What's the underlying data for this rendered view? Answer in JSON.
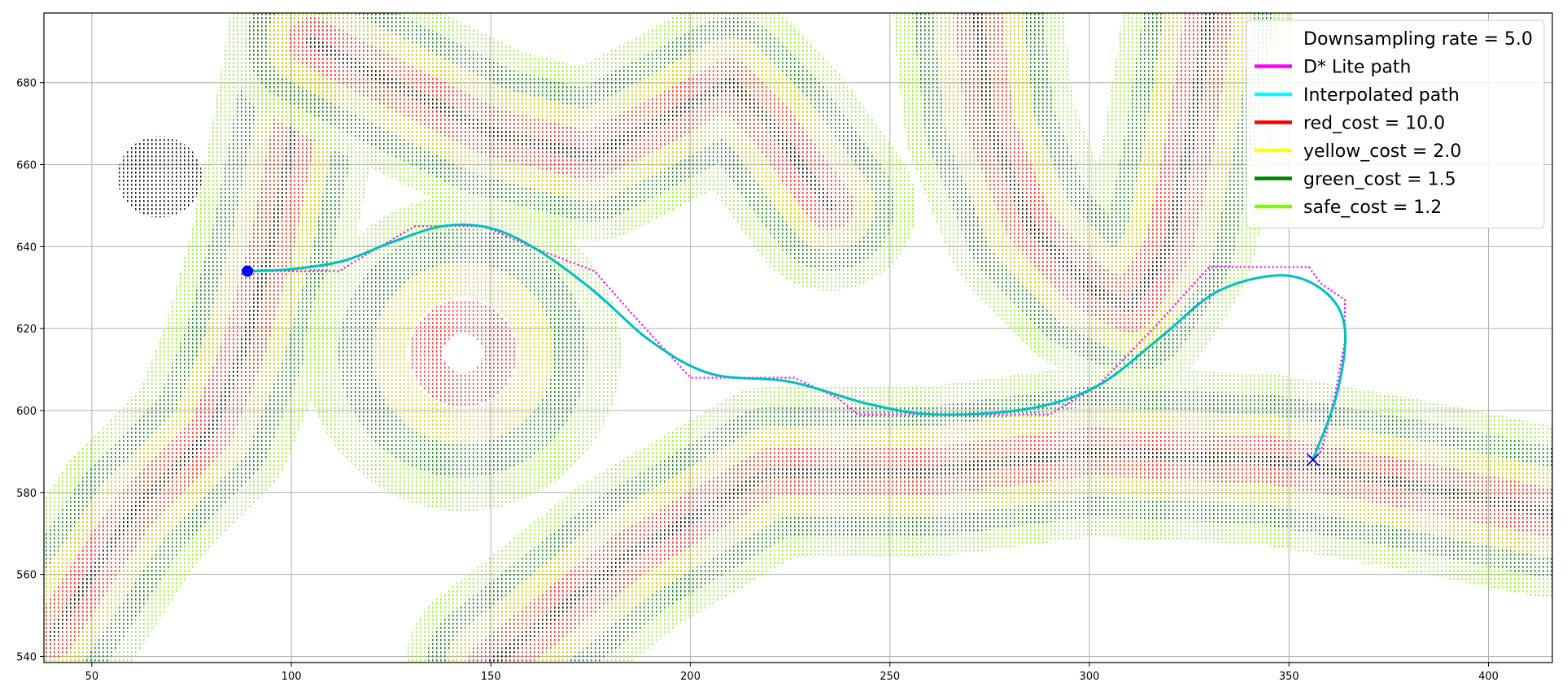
{
  "chart_data": {
    "type": "scatter",
    "title": "",
    "xlabel": "",
    "ylabel": "",
    "xlim": [
      38,
      416
    ],
    "ylim": [
      538.5,
      697
    ],
    "grid": true,
    "legend_position": "upper-right",
    "x_ticks": [
      50,
      100,
      150,
      200,
      250,
      300,
      350,
      400
    ],
    "y_ticks": [
      540,
      560,
      580,
      600,
      620,
      640,
      660,
      680
    ],
    "legend": [
      {
        "label": "Downsampling rate = 5.0",
        "color": "none"
      },
      {
        "label": "D* Lite path",
        "color": "#ff00ff"
      },
      {
        "label": "Interpolated path",
        "color": "#00ffff"
      },
      {
        "label": "red_cost = 10.0",
        "color": "#ff0000"
      },
      {
        "label": "yellow_cost = 2.0",
        "color": "#ffff00"
      },
      {
        "label": "green_cost = 1.5",
        "color": "#008000"
      },
      {
        "label": "safe_cost = 1.2",
        "color": "#7cfc00"
      }
    ],
    "start_point": {
      "x": 89,
      "y": 634
    },
    "goal_point": {
      "x": 356,
      "y": 588
    },
    "dstar_path": [
      [
        89,
        634
      ],
      [
        112,
        634
      ],
      [
        117,
        637
      ],
      [
        131,
        645
      ],
      [
        148,
        645
      ],
      [
        160,
        640
      ],
      [
        176,
        634
      ],
      [
        185,
        624
      ],
      [
        200,
        608
      ],
      [
        226,
        608
      ],
      [
        237,
        603
      ],
      [
        242,
        599
      ],
      [
        290,
        599
      ],
      [
        302,
        606
      ],
      [
        316,
        620
      ],
      [
        330,
        635
      ],
      [
        355,
        635
      ],
      [
        358,
        631
      ],
      [
        364,
        627
      ],
      [
        364,
        617
      ],
      [
        362,
        606
      ],
      [
        360,
        597
      ],
      [
        358,
        590
      ],
      [
        356,
        588
      ]
    ],
    "interpolated_path": [
      [
        89,
        634
      ],
      [
        100,
        634.5
      ],
      [
        113,
        636.5
      ],
      [
        125,
        641
      ],
      [
        138,
        645
      ],
      [
        150,
        644.5
      ],
      [
        162,
        639
      ],
      [
        176,
        629
      ],
      [
        190,
        617
      ],
      [
        205,
        609
      ],
      [
        225,
        607
      ],
      [
        245,
        601.5
      ],
      [
        262,
        599
      ],
      [
        285,
        600.5
      ],
      [
        302,
        606
      ],
      [
        318,
        618
      ],
      [
        332,
        629
      ],
      [
        348,
        633
      ],
      [
        359,
        629
      ],
      [
        364,
        620
      ],
      [
        362,
        604
      ],
      [
        356,
        588
      ]
    ],
    "colors": {
      "red": "#ff0000",
      "yellow": "#ffff00",
      "green": "#008000",
      "safe": "#7cfc00",
      "obstacle": "#222222",
      "dstar": "#ff00ff",
      "interp": "#00bfbf",
      "start": "#0000ff",
      "goal": "#0000ff"
    }
  }
}
